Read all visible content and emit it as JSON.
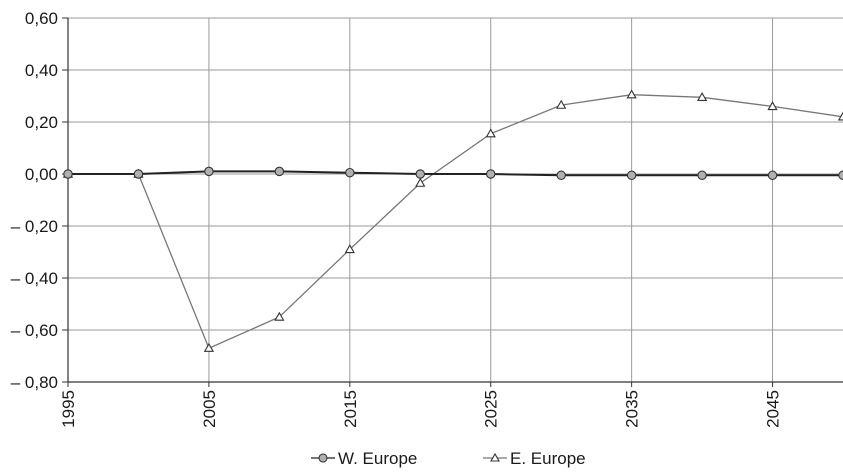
{
  "chart_data": {
    "type": "line",
    "title": "",
    "xlabel": "",
    "ylabel": "",
    "xlim": [
      1995,
      2050
    ],
    "ylim": [
      -0.8,
      0.6
    ],
    "grid": true,
    "legend_position": "bottom",
    "x_ticks": [
      1995,
      2005,
      2015,
      2025,
      2035,
      2045
    ],
    "x_tick_labels": [
      "1995",
      "2005",
      "2015",
      "2025",
      "2035",
      "2045"
    ],
    "y_ticks": [
      0.6,
      0.4,
      0.2,
      0.0,
      -0.2,
      -0.4,
      -0.6,
      -0.8
    ],
    "y_tick_labels": [
      "0,60",
      "0,40",
      "0,20",
      "0,00",
      "– 0,20",
      "– 0,40",
      "– 0,60",
      "– 0,80"
    ],
    "x": [
      1995,
      2000,
      2005,
      2010,
      2015,
      2020,
      2025,
      2030,
      2035,
      2040,
      2045,
      2050
    ],
    "series": [
      {
        "name": "W. Europe",
        "marker": "circle",
        "color": "#222222",
        "values": [
          0.0,
          0.0,
          0.01,
          0.01,
          0.005,
          0.0,
          0.0,
          -0.005,
          -0.005,
          -0.005,
          -0.005,
          -0.005
        ]
      },
      {
        "name": "E. Europe",
        "marker": "triangle",
        "color": "#777777",
        "values": [
          0.0,
          0.0,
          -0.67,
          -0.55,
          -0.29,
          -0.035,
          0.155,
          0.265,
          0.305,
          0.295,
          0.26,
          0.22
        ]
      }
    ]
  },
  "colors": {
    "grid": "#9a9a9a",
    "axis": "#333333",
    "w_europe_marker_fill": "#b0b0b0",
    "e_europe_marker_fill": "#ffffff"
  }
}
